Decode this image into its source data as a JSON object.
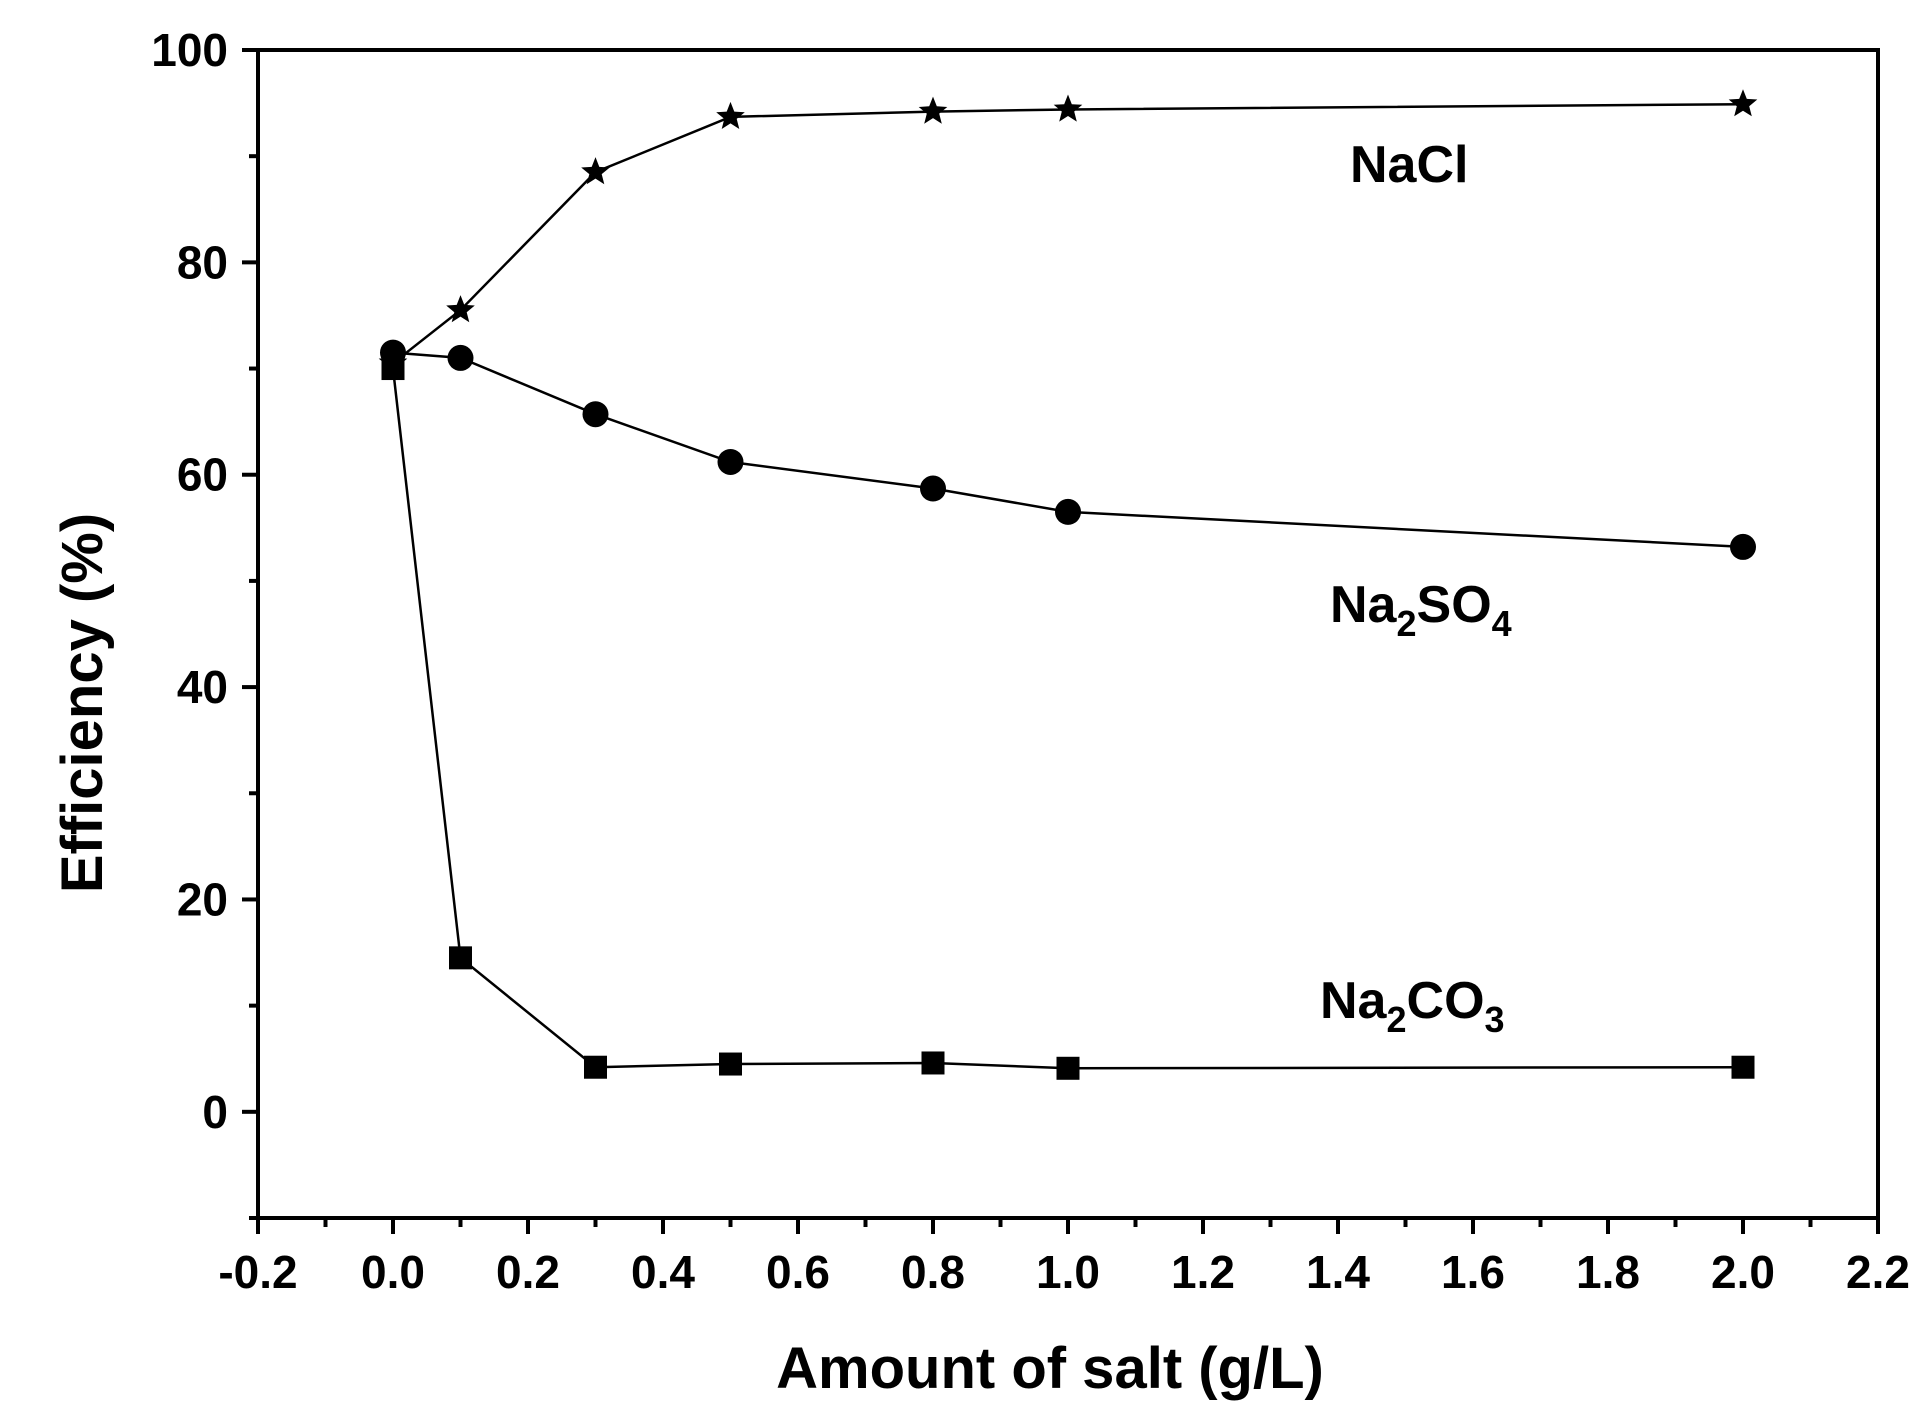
{
  "chart_data": {
    "type": "line",
    "xlabel": "Amount of salt (g/L)",
    "ylabel": "Efficiency (%)",
    "xlim": [
      -0.2,
      2.2
    ],
    "ylim": [
      -10,
      100
    ],
    "x_ticks": [
      "-0.2",
      "0.0",
      "0.2",
      "0.4",
      "0.6",
      "0.8",
      "1.0",
      "1.2",
      "1.4",
      "1.6",
      "1.8",
      "2.0",
      "2.2"
    ],
    "y_ticks": [
      "0",
      "20",
      "40",
      "60",
      "80",
      "100"
    ],
    "grid": false,
    "series": [
      {
        "name": "NaCl",
        "marker": "star",
        "color": "#000000",
        "x": [
          0.0,
          0.1,
          0.3,
          0.5,
          0.8,
          1.0,
          2.0
        ],
        "y": [
          70.5,
          75.5,
          88.5,
          93.7,
          94.2,
          94.4,
          94.9
        ]
      },
      {
        "name": "Na2SO4",
        "marker": "circle",
        "color": "#000000",
        "x": [
          0.0,
          0.1,
          0.3,
          0.5,
          0.8,
          1.0,
          2.0
        ],
        "y": [
          71.5,
          71.0,
          65.7,
          61.2,
          58.7,
          56.5,
          53.2
        ]
      },
      {
        "name": "Na2CO3",
        "marker": "square",
        "color": "#000000",
        "x": [
          0.0,
          0.1,
          0.3,
          0.5,
          0.8,
          1.0,
          2.0
        ],
        "y": [
          70.0,
          14.5,
          4.2,
          4.5,
          4.6,
          4.1,
          4.2
        ]
      }
    ],
    "annotations": [
      {
        "label_main": "NaCl",
        "sub1": "",
        "mid": "",
        "sub2": ""
      },
      {
        "label_main": "Na",
        "sub1": "2",
        "mid": "SO",
        "sub2": "4"
      },
      {
        "label_main": "Na",
        "sub1": "2",
        "mid": "CO",
        "sub2": "3"
      }
    ]
  }
}
